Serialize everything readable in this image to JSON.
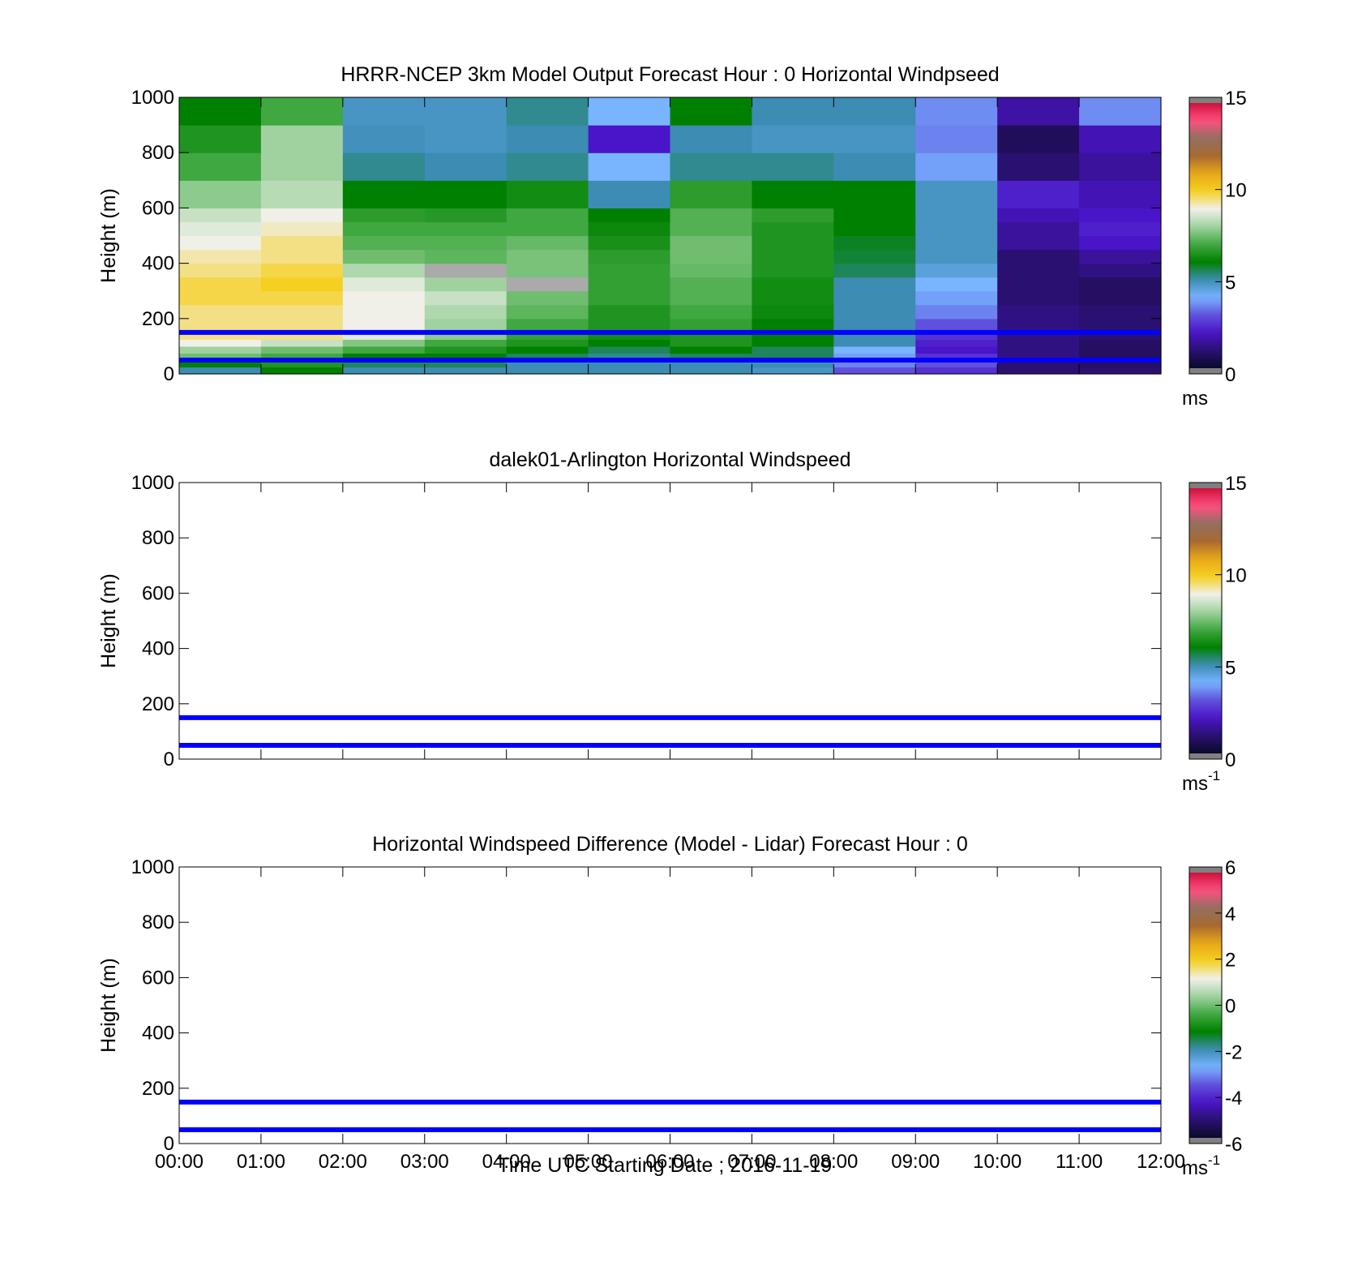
{
  "figure": {
    "xlabel": "Time UTC  Starting Date ; 2016-11-19",
    "time_ticks": [
      "00:00",
      "01:00",
      "02:00",
      "03:00",
      "04:00",
      "05:00",
      "06:00",
      "07:00",
      "08:00",
      "09:00",
      "10:00",
      "11:00",
      "12:00"
    ]
  },
  "chart_data": [
    {
      "type": "heatmap",
      "title": "HRRR-NCEP 3km Model Output   Forecast Hour : 0 Horizontal Windpseed",
      "ylabel": "Height (m)",
      "ylim": [
        0,
        1000
      ],
      "y_ticks": [
        "0",
        "200",
        "400",
        "600",
        "800",
        "1000"
      ],
      "xlim": [
        "00:00",
        "12:00"
      ],
      "colorbar": {
        "min": 0,
        "max": 15,
        "ticks": [
          0,
          5,
          10,
          15
        ],
        "tick_labels": [
          "0",
          "5",
          "10",
          "15"
        ],
        "unit": "ms",
        "unit_sup": ""
      },
      "heights": [
        25,
        50,
        75,
        100,
        125,
        160,
        200,
        250,
        300,
        350,
        400,
        450,
        500,
        550,
        600,
        700,
        800,
        900,
        1000
      ],
      "times": [
        "00:00",
        "01:00",
        "02:00",
        "03:00",
        "04:00",
        "05:00",
        "06:00",
        "07:00",
        "08:00",
        "09:00",
        "10:00",
        "11:00"
      ],
      "values": [
        [
          5.0,
          6.0,
          5.0,
          5.0,
          5.0,
          5.0,
          5.0,
          4.8,
          3.0,
          2.5,
          1.0,
          1.0
        ],
        [
          6.0,
          6.5,
          5.5,
          5.5,
          5.0,
          5.0,
          5.0,
          5.0,
          3.5,
          3.0,
          1.0,
          0.8
        ],
        [
          7.5,
          7.0,
          6.0,
          6.0,
          5.5,
          5.2,
          5.5,
          5.5,
          3.8,
          2.5,
          1.2,
          0.8
        ],
        [
          8.0,
          7.5,
          7.0,
          6.5,
          6.0,
          5.5,
          6.0,
          5.5,
          4.0,
          2.0,
          1.2,
          0.8
        ],
        [
          9.0,
          8.5,
          7.7,
          7.0,
          6.5,
          6.0,
          6.5,
          6.0,
          5.0,
          2.2,
          1.2,
          0.8
        ],
        [
          9.5,
          9.5,
          8.8,
          7.8,
          6.8,
          6.3,
          6.5,
          6.0,
          5.0,
          2.5,
          1.2,
          1.0
        ],
        [
          9.5,
          9.5,
          9.0,
          8.0,
          7.0,
          6.5,
          6.8,
          6.0,
          5.0,
          3.0,
          1.2,
          1.0
        ],
        [
          9.5,
          9.5,
          9.0,
          8.2,
          7.3,
          6.5,
          7.0,
          6.2,
          5.0,
          3.5,
          1.2,
          1.0
        ],
        [
          9.8,
          9.8,
          9.0,
          8.5,
          7.5,
          6.8,
          7.2,
          6.3,
          5.0,
          3.8,
          1.0,
          0.8
        ],
        [
          9.8,
          10.0,
          8.8,
          8.0,
          15.0,
          6.8,
          7.2,
          6.3,
          5.0,
          4.0,
          1.0,
          0.8
        ],
        [
          9.5,
          9.8,
          8.2,
          15.0,
          7.6,
          6.8,
          7.4,
          6.5,
          5.5,
          4.5,
          1.0,
          1.2
        ],
        [
          9.3,
          9.5,
          7.5,
          7.3,
          7.6,
          6.7,
          7.5,
          6.5,
          5.7,
          4.8,
          1.0,
          1.5
        ],
        [
          9.0,
          9.5,
          7.2,
          7.2,
          7.4,
          6.4,
          7.5,
          6.5,
          5.8,
          4.8,
          1.5,
          2.0
        ],
        [
          8.8,
          9.2,
          7.0,
          7.0,
          7.0,
          6.2,
          7.2,
          6.5,
          6.0,
          4.8,
          1.5,
          2.2
        ],
        [
          8.5,
          9.0,
          6.7,
          6.6,
          7.0,
          6.0,
          7.2,
          6.7,
          6.0,
          4.8,
          1.8,
          2.0
        ],
        [
          7.8,
          8.3,
          6.0,
          6.0,
          6.3,
          5.0,
          6.7,
          6.0,
          6.0,
          4.8,
          2.2,
          1.8
        ],
        [
          7.0,
          8.0,
          5.2,
          5.0,
          5.2,
          4.0,
          5.2,
          5.2,
          5.0,
          3.8,
          1.0,
          1.5
        ],
        [
          6.5,
          8.0,
          4.9,
          4.8,
          5.0,
          2.0,
          5.0,
          4.8,
          4.8,
          3.5,
          0.7,
          1.8
        ],
        [
          6.0,
          7.0,
          4.8,
          4.8,
          5.2,
          4.0,
          6.0,
          5.0,
          5.0,
          3.6,
          1.6,
          3.6
        ]
      ],
      "hlines": [
        50,
        150
      ],
      "hline_color": "#0000ff"
    },
    {
      "type": "heatmap",
      "title": "dalek01-Arlington  Horizontal Windspeed",
      "ylabel": "Height (m)",
      "ylim": [
        0,
        1000
      ],
      "y_ticks": [
        "0",
        "200",
        "400",
        "600",
        "800",
        "1000"
      ],
      "xlim": [
        "00:00",
        "12:00"
      ],
      "colorbar": {
        "min": 0,
        "max": 15,
        "ticks": [
          0,
          5,
          10,
          15
        ],
        "tick_labels": [
          "0",
          "5",
          "10",
          "15"
        ],
        "unit": "ms",
        "unit_sup": "-1"
      },
      "values": [],
      "hlines": [
        50,
        150
      ],
      "hline_color": "#0000ff"
    },
    {
      "type": "heatmap",
      "title": "Horizontal Windspeed Difference (Model - Lidar) Forecast Hour : 0",
      "ylabel": "Height (m)",
      "ylim": [
        0,
        1000
      ],
      "y_ticks": [
        "0",
        "200",
        "400",
        "600",
        "800",
        "1000"
      ],
      "xlim": [
        "00:00",
        "12:00"
      ],
      "colorbar": {
        "min": -6,
        "max": 6,
        "ticks": [
          -6,
          -4,
          -2,
          0,
          2,
          4,
          6
        ],
        "tick_labels": [
          "-6",
          "-4",
          "-2",
          "0",
          "2",
          "4",
          "6"
        ],
        "unit": "ms",
        "unit_sup": "-1"
      },
      "values": [],
      "hlines": [
        50,
        150
      ],
      "hline_color": "#0000ff"
    }
  ],
  "colormap_stops": [
    "#0a0a2a",
    "#2a1070",
    "#4a14c8",
    "#6050dc",
    "#78b4ff",
    "#3c8cb4",
    "#008000",
    "#40a840",
    "#a0d2a0",
    "#f0f0e8",
    "#f5d020",
    "#e8a818",
    "#a86a30",
    "#907060",
    "#ff5080",
    "#d0103c"
  ]
}
